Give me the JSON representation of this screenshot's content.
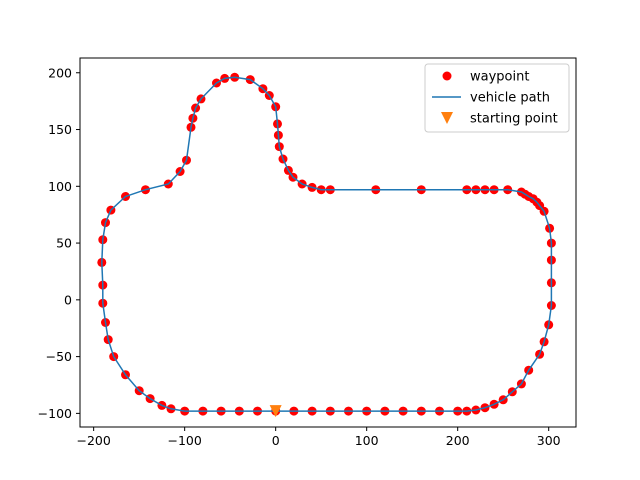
{
  "chart_data": {
    "type": "scatter",
    "title": "",
    "xlabel": "",
    "ylabel": "",
    "xlim": [
      -215,
      330
    ],
    "ylim": [
      -112,
      213
    ],
    "xticks": [
      -200,
      -100,
      0,
      100,
      200,
      300
    ],
    "yticks": [
      -100,
      -50,
      0,
      50,
      100,
      150,
      200
    ],
    "xtick_labels": [
      "−200",
      "−100",
      "0",
      "100",
      "200",
      "300"
    ],
    "ytick_labels": [
      "−100",
      "−50",
      "0",
      "50",
      "100",
      "150",
      "200"
    ],
    "legend_position": "top-right",
    "series": [
      {
        "name": "waypoint",
        "kind": "markers",
        "color": "#ff0000",
        "points": [
          [
            -190,
            53
          ],
          [
            -187,
            68
          ],
          [
            -181,
            79
          ],
          [
            -165,
            91
          ],
          [
            -143,
            97
          ],
          [
            -118,
            102
          ],
          [
            -105,
            113
          ],
          [
            -98,
            123
          ],
          [
            -93,
            152
          ],
          [
            -91,
            160
          ],
          [
            -88,
            169
          ],
          [
            -82,
            177
          ],
          [
            -65,
            191
          ],
          [
            -56,
            195
          ],
          [
            -45,
            196
          ],
          [
            -28,
            194
          ],
          [
            -14,
            186
          ],
          [
            -7,
            180
          ],
          [
            0,
            170
          ],
          [
            2,
            155
          ],
          [
            3,
            145
          ],
          [
            4,
            135
          ],
          [
            8,
            124
          ],
          [
            14,
            114
          ],
          [
            19,
            108
          ],
          [
            29,
            102
          ],
          [
            40,
            99
          ],
          [
            50,
            97
          ],
          [
            60,
            97
          ],
          [
            110,
            97
          ],
          [
            160,
            97
          ],
          [
            210,
            97
          ],
          [
            220,
            97
          ],
          [
            230,
            97
          ],
          [
            240,
            97
          ],
          [
            255,
            97
          ],
          [
            270,
            95
          ],
          [
            274,
            93
          ],
          [
            278,
            91
          ],
          [
            283,
            89
          ],
          [
            287,
            86
          ],
          [
            290,
            83
          ],
          [
            295,
            78
          ],
          [
            301,
            63
          ],
          [
            303,
            50
          ],
          [
            303,
            35
          ],
          [
            303,
            15
          ],
          [
            303,
            -5
          ],
          [
            300,
            -22
          ],
          [
            295,
            -37
          ],
          [
            290,
            -48
          ],
          [
            278,
            -62
          ],
          [
            270,
            -74
          ],
          [
            260,
            -81
          ],
          [
            250,
            -88
          ],
          [
            240,
            -92
          ],
          [
            230,
            -95
          ],
          [
            220,
            -97
          ],
          [
            210,
            -98
          ],
          [
            200,
            -98
          ],
          [
            180,
            -98
          ],
          [
            160,
            -98
          ],
          [
            140,
            -98
          ],
          [
            120,
            -98
          ],
          [
            100,
            -98
          ],
          [
            80,
            -98
          ],
          [
            60,
            -98
          ],
          [
            40,
            -98
          ],
          [
            20,
            -98
          ],
          [
            0,
            -98
          ],
          [
            -20,
            -98
          ],
          [
            -40,
            -98
          ],
          [
            -60,
            -98
          ],
          [
            -80,
            -98
          ],
          [
            -100,
            -98
          ],
          [
            -115,
            -96
          ],
          [
            -125,
            -93
          ],
          [
            -138,
            -87
          ],
          [
            -150,
            -80
          ],
          [
            -165,
            -66
          ],
          [
            -178,
            -50
          ],
          [
            -184,
            -35
          ],
          [
            -187,
            -20
          ],
          [
            -190,
            -3
          ],
          [
            -190,
            13
          ],
          [
            -191,
            33
          ]
        ]
      },
      {
        "name": "vehicle path",
        "kind": "line",
        "color": "#1f77b4",
        "closed": true
      },
      {
        "name": "starting point",
        "kind": "marker",
        "color": "#ff7f0e",
        "points": [
          [
            0,
            -98
          ]
        ]
      }
    ]
  }
}
